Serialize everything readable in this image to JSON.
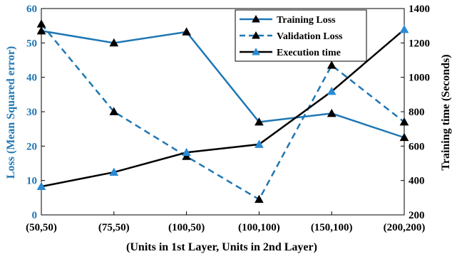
{
  "chart_data": {
    "type": "line",
    "categories": [
      "(50,50)",
      "(75,50)",
      "(100,50)",
      "(100,100)",
      "(150,100)",
      "(200,200)"
    ],
    "xlabel": "(Units in 1st Layer, Units in 2nd Layer)",
    "ylabel_left": "Loss (Mean Squared error)",
    "ylabel_right": "Training time (Seconds)",
    "ylim_left": [
      0,
      60
    ],
    "ylim_right": [
      200,
      1400
    ],
    "yticks_left": [
      0,
      10,
      20,
      30,
      40,
      50,
      60
    ],
    "yticks_right": [
      200,
      400,
      600,
      800,
      1000,
      1200,
      1400
    ],
    "legend_position": "top-right",
    "grid": false,
    "series": [
      {
        "name": "Training Loss",
        "axis": "left",
        "values": [
          53.5,
          50,
          53.2,
          27,
          29.5,
          22.5
        ],
        "color": "#1f77b4",
        "line_style": "solid",
        "marker_color": "#000000"
      },
      {
        "name": "Validation Loss",
        "axis": "left",
        "values": [
          55.5,
          30,
          17,
          4.5,
          43.5,
          27
        ],
        "color": "#1f77b4",
        "line_style": "dashed",
        "marker_color": "#000000"
      },
      {
        "name": "Execution time",
        "axis": "right",
        "values": [
          365,
          448,
          563,
          610,
          918,
          1278
        ],
        "color": "#000000",
        "line_style": "solid",
        "marker_color": "#2a8bd4"
      }
    ]
  }
}
